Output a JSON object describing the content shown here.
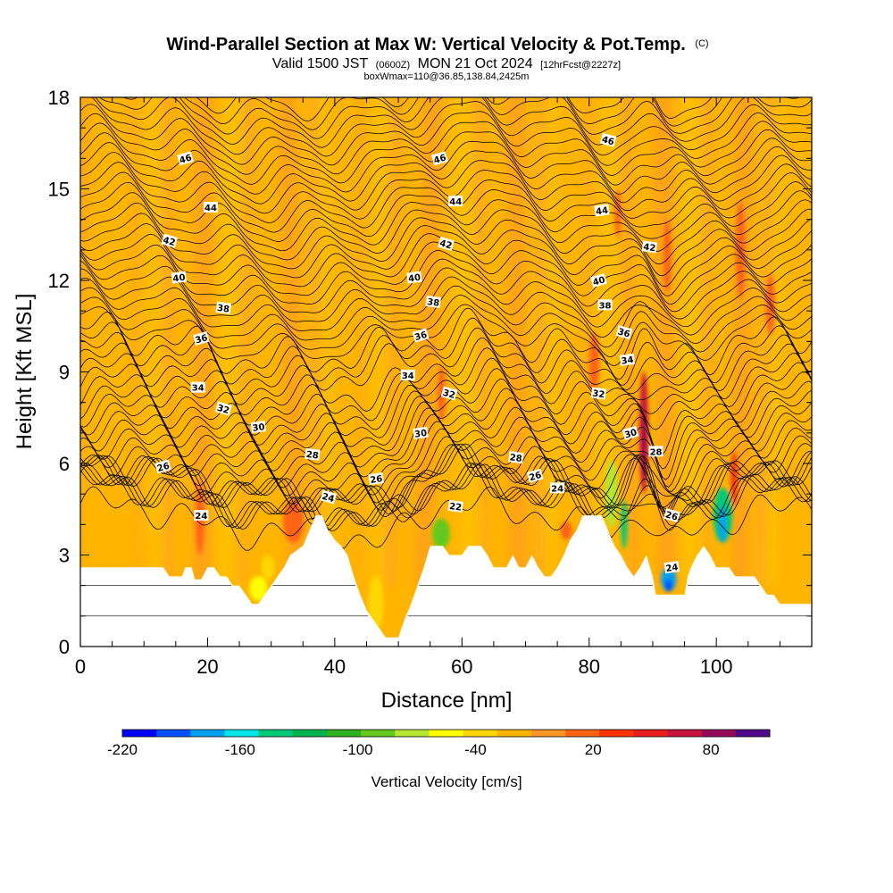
{
  "chart_data": {
    "type": "heatmap",
    "title": "Wind-Parallel Section at Max W: Vertical Velocity & Pot.Temp.",
    "title_mark": "(C)",
    "subtitle_parts": [
      "Valid 1500 JST",
      "(0600Z)",
      "MON 21 Oct 2024",
      "[12hrFcst@2227z]"
    ],
    "subtitle2": "boxWmax=110@36.85,138.84,2425m",
    "xlabel": "Distance [nm]",
    "ylabel": "Height [Kft MSL]",
    "xlim": [
      0,
      115
    ],
    "ylim": [
      0,
      18
    ],
    "x_ticks": [
      "0",
      "20",
      "40",
      "60",
      "80",
      "100"
    ],
    "y_ticks": [
      "0",
      "3",
      "6",
      "9",
      "12",
      "15",
      "18"
    ],
    "x_tick_values": [
      0,
      20,
      40,
      60,
      80,
      100
    ],
    "y_tick_values": [
      0,
      3,
      6,
      9,
      12,
      15,
      18
    ],
    "colorbar": {
      "label": "Vertical Velocity [cm/s]",
      "tick_labels": [
        "-220",
        "-160",
        "-100",
        "-40",
        "20",
        "80"
      ],
      "tick_values": [
        -220,
        -160,
        -100,
        -40,
        20,
        80
      ],
      "min": -220,
      "max": 110,
      "colors": [
        "#0000ff",
        "#0050ff",
        "#00a0f0",
        "#00e6e6",
        "#00c878",
        "#00b450",
        "#30b020",
        "#64c81e",
        "#b4e632",
        "#ffff00",
        "#ffd700",
        "#ffb400",
        "#ff9628",
        "#ff6414",
        "#ff3200",
        "#e61e1e",
        "#c8143c",
        "#960a5a",
        "#500a8c"
      ]
    },
    "terrain": [
      [
        0,
        2.6
      ],
      [
        13,
        2.6
      ],
      [
        14,
        2.3
      ],
      [
        16,
        2.3
      ],
      [
        16.5,
        2.6
      ],
      [
        17.5,
        2.6
      ],
      [
        18,
        2.2
      ],
      [
        19,
        2.2
      ],
      [
        20,
        2.6
      ],
      [
        21,
        2.6
      ],
      [
        22,
        2.3
      ],
      [
        23,
        2.3
      ],
      [
        24,
        2.0
      ],
      [
        25,
        2.0
      ],
      [
        26,
        1.7
      ],
      [
        27,
        1.4
      ],
      [
        28,
        1.4
      ],
      [
        29,
        1.7
      ],
      [
        30,
        2.0
      ],
      [
        32,
        2.6
      ],
      [
        33,
        3.0
      ],
      [
        35,
        3.3
      ],
      [
        36,
        3.8
      ],
      [
        37,
        4.3
      ],
      [
        38,
        4.3
      ],
      [
        39,
        3.8
      ],
      [
        40,
        3.5
      ],
      [
        41,
        3.3
      ],
      [
        42,
        3.0
      ],
      [
        43,
        2.3
      ],
      [
        44,
        1.7
      ],
      [
        45,
        1.2
      ],
      [
        46,
        0.9
      ],
      [
        47,
        0.6
      ],
      [
        48,
        0.3
      ],
      [
        50,
        0.3
      ],
      [
        51,
        0.9
      ],
      [
        52,
        1.4
      ],
      [
        53,
        2.0
      ],
      [
        54,
        2.6
      ],
      [
        55,
        3.3
      ],
      [
        57,
        3.3
      ],
      [
        58,
        3.0
      ],
      [
        60,
        3.0
      ],
      [
        61,
        3.3
      ],
      [
        63,
        3.3
      ],
      [
        64,
        3.0
      ],
      [
        65,
        2.6
      ],
      [
        67,
        2.6
      ],
      [
        68,
        3.0
      ],
      [
        69,
        2.6
      ],
      [
        70,
        2.6
      ],
      [
        71,
        3.0
      ],
      [
        72,
        2.6
      ],
      [
        73,
        2.3
      ],
      [
        74,
        2.3
      ],
      [
        75,
        2.6
      ],
      [
        76,
        3.0
      ],
      [
        77,
        3.5
      ],
      [
        78,
        3.8
      ],
      [
        79,
        4.3
      ],
      [
        82,
        4.3
      ],
      [
        83,
        3.8
      ],
      [
        84,
        3.3
      ],
      [
        85,
        3.0
      ],
      [
        86,
        2.6
      ],
      [
        87,
        2.3
      ],
      [
        88,
        2.6
      ],
      [
        89,
        3.0
      ],
      [
        90,
        2.3
      ],
      [
        90.5,
        1.7
      ],
      [
        95,
        1.7
      ],
      [
        95.5,
        2.3
      ],
      [
        96,
        2.6
      ],
      [
        97,
        3.0
      ],
      [
        98,
        3.3
      ],
      [
        99,
        3.0
      ],
      [
        100,
        2.6
      ],
      [
        102,
        2.6
      ],
      [
        103,
        2.3
      ],
      [
        104,
        2.3
      ],
      [
        106,
        2.3
      ],
      [
        107,
        2.0
      ],
      [
        108,
        1.7
      ],
      [
        109,
        1.7
      ],
      [
        110,
        1.4
      ],
      [
        112,
        1.4
      ],
      [
        115,
        1.4
      ]
    ],
    "contour_levels": [
      22,
      24,
      26,
      28,
      30,
      32,
      34,
      36,
      38,
      40,
      42,
      44,
      46
    ],
    "contour_labels": [
      {
        "text": "46",
        "x": 16.5,
        "y": 16.0
      },
      {
        "text": "44",
        "x": 20.5,
        "y": 14.4
      },
      {
        "text": "42",
        "x": 14.0,
        "y": 13.3
      },
      {
        "text": "40",
        "x": 15.5,
        "y": 12.1
      },
      {
        "text": "38",
        "x": 22.5,
        "y": 11.1
      },
      {
        "text": "36",
        "x": 19.0,
        "y": 10.1
      },
      {
        "text": "34",
        "x": 18.5,
        "y": 8.5
      },
      {
        "text": "32",
        "x": 22.5,
        "y": 7.8
      },
      {
        "text": "30",
        "x": 28.0,
        "y": 7.2
      },
      {
        "text": "28",
        "x": 36.5,
        "y": 6.3
      },
      {
        "text": "26",
        "x": 13.0,
        "y": 5.9
      },
      {
        "text": "24",
        "x": 19.0,
        "y": 4.3
      },
      {
        "text": "24",
        "x": 39.0,
        "y": 4.9
      },
      {
        "text": "26",
        "x": 46.5,
        "y": 5.5
      },
      {
        "text": "22",
        "x": 59.0,
        "y": 4.6
      },
      {
        "text": "46",
        "x": 56.5,
        "y": 16.0
      },
      {
        "text": "44",
        "x": 59.0,
        "y": 14.6
      },
      {
        "text": "42",
        "x": 57.5,
        "y": 13.2
      },
      {
        "text": "40",
        "x": 52.5,
        "y": 12.1
      },
      {
        "text": "38",
        "x": 55.5,
        "y": 11.3
      },
      {
        "text": "36",
        "x": 53.5,
        "y": 10.2
      },
      {
        "text": "34",
        "x": 51.5,
        "y": 8.9
      },
      {
        "text": "32",
        "x": 58.0,
        "y": 8.3
      },
      {
        "text": "30",
        "x": 53.5,
        "y": 7.0
      },
      {
        "text": "28",
        "x": 68.5,
        "y": 6.2
      },
      {
        "text": "26",
        "x": 71.5,
        "y": 5.6
      },
      {
        "text": "24",
        "x": 75.0,
        "y": 5.2
      },
      {
        "text": "46",
        "x": 83.0,
        "y": 16.6
      },
      {
        "text": "44",
        "x": 82.0,
        "y": 14.3
      },
      {
        "text": "42",
        "x": 89.5,
        "y": 13.1
      },
      {
        "text": "40",
        "x": 81.5,
        "y": 12.0
      },
      {
        "text": "38",
        "x": 82.5,
        "y": 11.2
      },
      {
        "text": "36",
        "x": 85.5,
        "y": 10.3
      },
      {
        "text": "34",
        "x": 86.0,
        "y": 9.4
      },
      {
        "text": "32",
        "x": 81.5,
        "y": 8.3
      },
      {
        "text": "30",
        "x": 86.5,
        "y": 7.0
      },
      {
        "text": "28",
        "x": 90.5,
        "y": 6.4
      },
      {
        "text": "26",
        "x": 93.0,
        "y": 4.3
      },
      {
        "text": "24",
        "x": 93.0,
        "y": 2.6
      }
    ],
    "updraft_patches": [
      {
        "x": 18.8,
        "y": 4.2,
        "rx": 0.7,
        "ry": 1.2,
        "color": "#ff6414"
      },
      {
        "x": 33.5,
        "y": 4.1,
        "rx": 1.6,
        "ry": 0.7,
        "color": "#ff6414"
      },
      {
        "x": 56.8,
        "y": 8.3,
        "rx": 0.6,
        "ry": 0.9,
        "color": "#ff6414"
      },
      {
        "x": 80.8,
        "y": 9.3,
        "rx": 0.8,
        "ry": 1.0,
        "color": "#ff6414"
      },
      {
        "x": 84.5,
        "y": 14.2,
        "rx": 0.5,
        "ry": 0.8,
        "color": "#ff6414"
      },
      {
        "x": 88.6,
        "y": 7.0,
        "rx": 0.7,
        "ry": 2.0,
        "color": "#c8143c"
      },
      {
        "x": 88.7,
        "y": 6.6,
        "rx": 0.3,
        "ry": 1.2,
        "color": "#960a5a"
      },
      {
        "x": 92.3,
        "y": 12.8,
        "rx": 0.6,
        "ry": 1.2,
        "color": "#ff6414"
      },
      {
        "x": 103.8,
        "y": 13.0,
        "rx": 0.7,
        "ry": 1.6,
        "color": "#ff6414"
      },
      {
        "x": 108.5,
        "y": 11.2,
        "rx": 0.7,
        "ry": 1.0,
        "color": "#ff6414"
      },
      {
        "x": 102.8,
        "y": 5.5,
        "rx": 0.5,
        "ry": 0.9,
        "color": "#ff3200"
      },
      {
        "x": 76.4,
        "y": 3.8,
        "rx": 0.9,
        "ry": 0.3,
        "color": "#ff6414"
      }
    ],
    "downdraft_patches": [
      {
        "x": 56.7,
        "y": 3.7,
        "rx": 1.4,
        "ry": 0.5,
        "color": "#64c81e"
      },
      {
        "x": 83.5,
        "y": 5.0,
        "rx": 1.0,
        "ry": 1.1,
        "color": "#b4e632"
      },
      {
        "x": 85.5,
        "y": 4.0,
        "rx": 0.5,
        "ry": 0.8,
        "color": "#00c878"
      },
      {
        "x": 92.5,
        "y": 2.2,
        "rx": 1.2,
        "ry": 0.4,
        "color": "#00a0f0"
      },
      {
        "x": 92.5,
        "y": 2.0,
        "rx": 0.6,
        "ry": 0.2,
        "color": "#0050ff"
      },
      {
        "x": 101.0,
        "y": 4.3,
        "rx": 1.5,
        "ry": 0.9,
        "color": "#00c878"
      },
      {
        "x": 101.0,
        "y": 4.0,
        "rx": 0.6,
        "ry": 0.6,
        "color": "#00a0f0"
      },
      {
        "x": 28.0,
        "y": 1.9,
        "rx": 1.4,
        "ry": 0.4,
        "color": "#ffff00"
      },
      {
        "x": 29.5,
        "y": 2.6,
        "rx": 1.0,
        "ry": 0.4,
        "color": "#ffd700"
      },
      {
        "x": 46.5,
        "y": 1.4,
        "rx": 1.2,
        "ry": 0.9,
        "color": "#ffd700"
      }
    ]
  }
}
